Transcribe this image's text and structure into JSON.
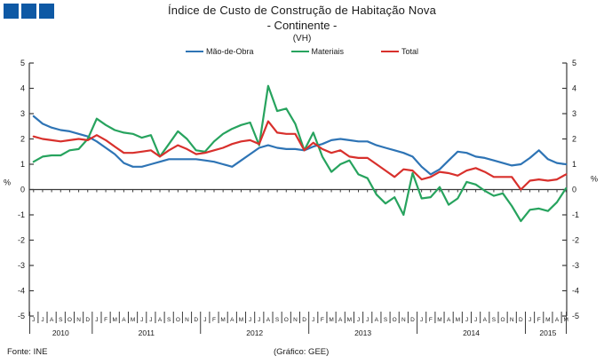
{
  "header": {
    "title_line1": "Índice de Custo de Construção de Habitação Nova",
    "title_line2": "- Continente -",
    "title_line3": "(VH)"
  },
  "footer": {
    "source": "Fonte:  INE",
    "credit": "(Gráfico: GEE)"
  },
  "colors": {
    "logo_blue": "#0E59A5",
    "labor_blue": "#2E74B5",
    "materials_green": "#27A35E",
    "total_red": "#D8302C",
    "axis": "#3a3a3a"
  },
  "chart_data": {
    "type": "line",
    "title": "Índice de Custo de Construção de Habitação Nova - Continente - (VH)",
    "grid": false,
    "legend_position": "top-center",
    "y_axis": {
      "min": -5,
      "max": 5,
      "step": 1,
      "unit_label_left": "%",
      "unit_label_right": "%",
      "tick_labels": [
        "5",
        "4",
        "3",
        "2",
        "1",
        "0",
        "-1",
        "-2",
        "-3",
        "-4",
        "-5"
      ]
    },
    "years": [
      {
        "label": "2010",
        "months": [
          "J",
          "J",
          "A",
          "S",
          "O",
          "N",
          "D"
        ]
      },
      {
        "label": "2011",
        "months": [
          "J",
          "F",
          "M",
          "A",
          "M",
          "J",
          "J",
          "A",
          "S",
          "O",
          "N",
          "D"
        ]
      },
      {
        "label": "2012",
        "months": [
          "J",
          "F",
          "M",
          "A",
          "M",
          "J",
          "J",
          "A",
          "S",
          "O",
          "N",
          "D"
        ]
      },
      {
        "label": "2013",
        "months": [
          "J",
          "F",
          "M",
          "A",
          "M",
          "J",
          "J",
          "A",
          "S",
          "O",
          "N",
          "D"
        ]
      },
      {
        "label": "2014",
        "months": [
          "J",
          "F",
          "M",
          "A",
          "M",
          "J",
          "J",
          "A",
          "S",
          "O",
          "N",
          "D"
        ]
      },
      {
        "label": "2015",
        "months": [
          "J",
          "F",
          "M",
          "A",
          "M"
        ]
      }
    ],
    "series": [
      {
        "name": "Mão-de-Obra",
        "color": "#2E74B5",
        "values": [
          2.9,
          2.6,
          2.45,
          2.35,
          2.3,
          2.2,
          2.1,
          1.9,
          1.65,
          1.4,
          1.05,
          0.9,
          0.9,
          1.0,
          1.1,
          1.2,
          1.2,
          1.2,
          1.2,
          1.15,
          1.1,
          1.0,
          0.9,
          1.15,
          1.4,
          1.65,
          1.75,
          1.65,
          1.6,
          1.6,
          1.55,
          1.7,
          1.8,
          1.95,
          2.0,
          1.95,
          1.9,
          1.9,
          1.75,
          1.65,
          1.55,
          1.45,
          1.3,
          0.9,
          0.6,
          0.8,
          1.15,
          1.5,
          1.45,
          1.3,
          1.25,
          1.15,
          1.05,
          0.95,
          1.0,
          1.25,
          1.55,
          1.2,
          1.05,
          1.0
        ]
      },
      {
        "name": "Materiais",
        "color": "#27A35E",
        "values": [
          1.1,
          1.3,
          1.35,
          1.35,
          1.55,
          1.6,
          2.0,
          2.8,
          2.55,
          2.35,
          2.25,
          2.2,
          2.05,
          2.15,
          1.3,
          1.8,
          2.3,
          2.0,
          1.55,
          1.5,
          1.9,
          2.2,
          2.4,
          2.55,
          2.65,
          1.75,
          4.1,
          3.1,
          3.2,
          2.6,
          1.55,
          2.25,
          1.3,
          0.7,
          1.0,
          1.15,
          0.6,
          0.45,
          -0.2,
          -0.55,
          -0.3,
          -1.0,
          0.65,
          -0.35,
          -0.3,
          0.1,
          -0.6,
          -0.35,
          0.3,
          0.2,
          -0.05,
          -0.25,
          -0.15,
          -0.65,
          -1.25,
          -0.8,
          -0.75,
          -0.85,
          -0.5,
          0.05
        ]
      },
      {
        "name": "Total",
        "color": "#D8302C",
        "values": [
          2.1,
          2.0,
          1.95,
          1.9,
          1.95,
          2.0,
          1.95,
          2.15,
          1.95,
          1.7,
          1.45,
          1.45,
          1.5,
          1.55,
          1.3,
          1.55,
          1.75,
          1.6,
          1.4,
          1.45,
          1.55,
          1.65,
          1.8,
          1.9,
          1.95,
          1.8,
          2.7,
          2.25,
          2.2,
          2.2,
          1.55,
          1.85,
          1.6,
          1.45,
          1.55,
          1.3,
          1.25,
          1.25,
          1.0,
          0.75,
          0.5,
          0.8,
          0.75,
          0.4,
          0.5,
          0.7,
          0.65,
          0.55,
          0.75,
          0.85,
          0.7,
          0.5,
          0.5,
          0.5,
          0.0,
          0.35,
          0.4,
          0.35,
          0.4,
          0.6
        ]
      }
    ]
  }
}
